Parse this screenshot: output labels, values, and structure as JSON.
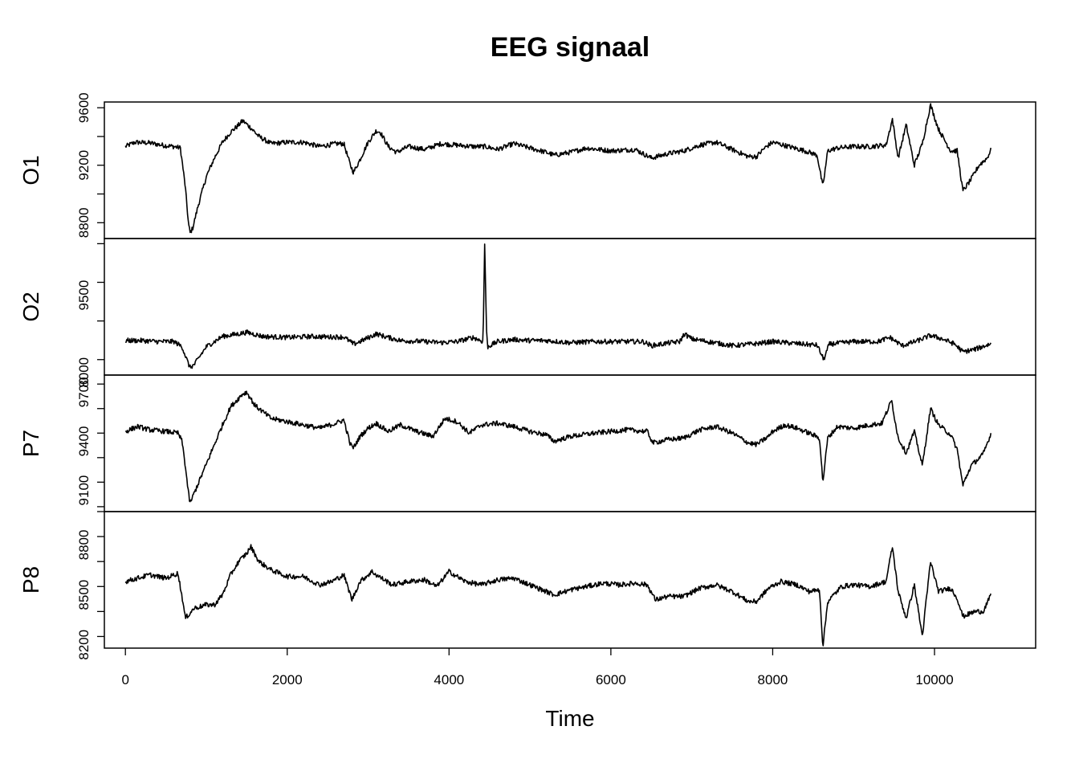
{
  "chart_data": {
    "type": "line",
    "title": "EEG signaal",
    "xlabel": "Time",
    "xlim": [
      -260,
      11250
    ],
    "x_ticks": [
      0,
      2000,
      4000,
      6000,
      8000,
      10000
    ],
    "grid": false,
    "series": [
      {
        "name": "O1",
        "ylim": [
          8690,
          9640
        ],
        "y_ticks": [
          8800,
          9200,
          9600
        ],
        "anchors": [
          [
            0,
            9330
          ],
          [
            120,
            9360
          ],
          [
            300,
            9355
          ],
          [
            450,
            9340
          ],
          [
            600,
            9330
          ],
          [
            680,
            9320
          ],
          [
            740,
            9050
          ],
          [
            780,
            8790
          ],
          [
            800,
            8730
          ],
          [
            830,
            8760
          ],
          [
            900,
            8920
          ],
          [
            1000,
            9120
          ],
          [
            1100,
            9250
          ],
          [
            1200,
            9360
          ],
          [
            1300,
            9430
          ],
          [
            1400,
            9480
          ],
          [
            1450,
            9510
          ],
          [
            1550,
            9460
          ],
          [
            1650,
            9400
          ],
          [
            1800,
            9350
          ],
          [
            2000,
            9360
          ],
          [
            2200,
            9360
          ],
          [
            2400,
            9330
          ],
          [
            2600,
            9350
          ],
          [
            2700,
            9350
          ],
          [
            2780,
            9200
          ],
          [
            2820,
            9150
          ],
          [
            2900,
            9240
          ],
          [
            3000,
            9360
          ],
          [
            3100,
            9440
          ],
          [
            3150,
            9430
          ],
          [
            3250,
            9330
          ],
          [
            3350,
            9290
          ],
          [
            3500,
            9330
          ],
          [
            3700,
            9310
          ],
          [
            3900,
            9350
          ],
          [
            4100,
            9340
          ],
          [
            4300,
            9330
          ],
          [
            4450,
            9330
          ],
          [
            4600,
            9310
          ],
          [
            4800,
            9350
          ],
          [
            5000,
            9320
          ],
          [
            5200,
            9290
          ],
          [
            5300,
            9270
          ],
          [
            5500,
            9290
          ],
          [
            5700,
            9320
          ],
          [
            6000,
            9300
          ],
          [
            6300,
            9310
          ],
          [
            6500,
            9250
          ],
          [
            6700,
            9280
          ],
          [
            6900,
            9300
          ],
          [
            7100,
            9340
          ],
          [
            7300,
            9360
          ],
          [
            7500,
            9310
          ],
          [
            7700,
            9260
          ],
          [
            7800,
            9260
          ],
          [
            7900,
            9320
          ],
          [
            8000,
            9360
          ],
          [
            8200,
            9330
          ],
          [
            8400,
            9300
          ],
          [
            8550,
            9270
          ],
          [
            8620,
            9050
          ],
          [
            8680,
            9300
          ],
          [
            8800,
            9320
          ],
          [
            9000,
            9330
          ],
          [
            9200,
            9330
          ],
          [
            9400,
            9340
          ],
          [
            9480,
            9520
          ],
          [
            9550,
            9250
          ],
          [
            9650,
            9480
          ],
          [
            9750,
            9200
          ],
          [
            9850,
            9350
          ],
          [
            9950,
            9620
          ],
          [
            10050,
            9450
          ],
          [
            10200,
            9300
          ],
          [
            10280,
            9300
          ],
          [
            10350,
            9020
          ],
          [
            10450,
            9100
          ],
          [
            10550,
            9200
          ],
          [
            10650,
            9250
          ],
          [
            10700,
            9310
          ]
        ]
      },
      {
        "name": "O2",
        "ylim": [
          7950,
          10600
        ],
        "y_ticks": [
          8000,
          9500
        ],
        "anchors": [
          [
            0,
            8620
          ],
          [
            200,
            8620
          ],
          [
            400,
            8600
          ],
          [
            600,
            8600
          ],
          [
            700,
            8500
          ],
          [
            780,
            8160
          ],
          [
            800,
            8100
          ],
          [
            850,
            8150
          ],
          [
            1000,
            8500
          ],
          [
            1200,
            8700
          ],
          [
            1400,
            8750
          ],
          [
            1500,
            8780
          ],
          [
            1700,
            8700
          ],
          [
            2000,
            8680
          ],
          [
            2300,
            8700
          ],
          [
            2500,
            8690
          ],
          [
            2700,
            8690
          ],
          [
            2820,
            8550
          ],
          [
            2900,
            8600
          ],
          [
            3100,
            8750
          ],
          [
            3200,
            8700
          ],
          [
            3400,
            8620
          ],
          [
            3700,
            8600
          ],
          [
            3900,
            8580
          ],
          [
            4100,
            8600
          ],
          [
            4300,
            8680
          ],
          [
            4420,
            8600
          ],
          [
            4440,
            10500
          ],
          [
            4465,
            8700
          ],
          [
            4480,
            8500
          ],
          [
            4600,
            8600
          ],
          [
            4800,
            8640
          ],
          [
            5000,
            8620
          ],
          [
            5200,
            8620
          ],
          [
            5500,
            8580
          ],
          [
            5800,
            8600
          ],
          [
            6100,
            8600
          ],
          [
            6400,
            8600
          ],
          [
            6500,
            8520
          ],
          [
            6700,
            8570
          ],
          [
            6850,
            8600
          ],
          [
            6910,
            8750
          ],
          [
            7000,
            8650
          ],
          [
            7200,
            8600
          ],
          [
            7500,
            8520
          ],
          [
            7800,
            8560
          ],
          [
            8000,
            8600
          ],
          [
            8300,
            8560
          ],
          [
            8550,
            8530
          ],
          [
            8630,
            8250
          ],
          [
            8700,
            8550
          ],
          [
            9000,
            8600
          ],
          [
            9300,
            8600
          ],
          [
            9450,
            8680
          ],
          [
            9600,
            8520
          ],
          [
            9800,
            8620
          ],
          [
            9950,
            8720
          ],
          [
            10100,
            8650
          ],
          [
            10250,
            8550
          ],
          [
            10350,
            8400
          ],
          [
            10500,
            8450
          ],
          [
            10700,
            8560
          ]
        ]
      },
      {
        "name": "P7",
        "ylim": [
          8970,
          9805
        ],
        "y_ticks": [
          9100,
          9400,
          9700
        ],
        "anchors": [
          [
            0,
            9460
          ],
          [
            150,
            9490
          ],
          [
            300,
            9470
          ],
          [
            500,
            9460
          ],
          [
            650,
            9450
          ],
          [
            700,
            9400
          ],
          [
            740,
            9250
          ],
          [
            780,
            9080
          ],
          [
            800,
            9020
          ],
          [
            830,
            9060
          ],
          [
            950,
            9200
          ],
          [
            1100,
            9380
          ],
          [
            1200,
            9500
          ],
          [
            1300,
            9610
          ],
          [
            1450,
            9690
          ],
          [
            1500,
            9700
          ],
          [
            1600,
            9620
          ],
          [
            1800,
            9540
          ],
          [
            2000,
            9520
          ],
          [
            2200,
            9500
          ],
          [
            2400,
            9480
          ],
          [
            2600,
            9510
          ],
          [
            2700,
            9530
          ],
          [
            2780,
            9380
          ],
          [
            2820,
            9360
          ],
          [
            2900,
            9430
          ],
          [
            3000,
            9480
          ],
          [
            3100,
            9510
          ],
          [
            3250,
            9460
          ],
          [
            3400,
            9500
          ],
          [
            3600,
            9460
          ],
          [
            3800,
            9430
          ],
          [
            3950,
            9540
          ],
          [
            4100,
            9520
          ],
          [
            4250,
            9450
          ],
          [
            4400,
            9500
          ],
          [
            4600,
            9510
          ],
          [
            4800,
            9490
          ],
          [
            5000,
            9460
          ],
          [
            5200,
            9440
          ],
          [
            5300,
            9400
          ],
          [
            5500,
            9430
          ],
          [
            5800,
            9450
          ],
          [
            6000,
            9460
          ],
          [
            6200,
            9470
          ],
          [
            6450,
            9460
          ],
          [
            6520,
            9390
          ],
          [
            6700,
            9410
          ],
          [
            6900,
            9420
          ],
          [
            7100,
            9470
          ],
          [
            7300,
            9490
          ],
          [
            7500,
            9450
          ],
          [
            7700,
            9390
          ],
          [
            7800,
            9380
          ],
          [
            7950,
            9430
          ],
          [
            8000,
            9460
          ],
          [
            8150,
            9500
          ],
          [
            8300,
            9480
          ],
          [
            8450,
            9450
          ],
          [
            8580,
            9420
          ],
          [
            8620,
            9150
          ],
          [
            8680,
            9420
          ],
          [
            8800,
            9490
          ],
          [
            9000,
            9480
          ],
          [
            9200,
            9500
          ],
          [
            9350,
            9510
          ],
          [
            9470,
            9650
          ],
          [
            9550,
            9420
          ],
          [
            9650,
            9330
          ],
          [
            9750,
            9460
          ],
          [
            9850,
            9250
          ],
          [
            9950,
            9600
          ],
          [
            10050,
            9500
          ],
          [
            10200,
            9440
          ],
          [
            10280,
            9350
          ],
          [
            10350,
            9130
          ],
          [
            10450,
            9250
          ],
          [
            10600,
            9320
          ],
          [
            10700,
            9450
          ]
        ]
      },
      {
        "name": "P8",
        "ylim": [
          8180,
          9000
        ],
        "y_ticks": [
          8200,
          8500,
          8800
        ],
        "anchors": [
          [
            0,
            8580
          ],
          [
            150,
            8600
          ],
          [
            300,
            8620
          ],
          [
            500,
            8600
          ],
          [
            650,
            8630
          ],
          [
            700,
            8490
          ],
          [
            740,
            8360
          ],
          [
            780,
            8380
          ],
          [
            850,
            8420
          ],
          [
            1000,
            8440
          ],
          [
            1100,
            8440
          ],
          [
            1200,
            8500
          ],
          [
            1300,
            8620
          ],
          [
            1400,
            8700
          ],
          [
            1500,
            8750
          ],
          [
            1550,
            8790
          ],
          [
            1650,
            8700
          ],
          [
            1800,
            8650
          ],
          [
            2000,
            8610
          ],
          [
            2200,
            8610
          ],
          [
            2400,
            8560
          ],
          [
            2550,
            8580
          ],
          [
            2700,
            8620
          ],
          [
            2800,
            8470
          ],
          [
            2900,
            8580
          ],
          [
            3050,
            8640
          ],
          [
            3100,
            8620
          ],
          [
            3300,
            8560
          ],
          [
            3500,
            8580
          ],
          [
            3700,
            8590
          ],
          [
            3850,
            8550
          ],
          [
            4000,
            8640
          ],
          [
            4200,
            8580
          ],
          [
            4400,
            8560
          ],
          [
            4600,
            8590
          ],
          [
            4800,
            8600
          ],
          [
            5000,
            8560
          ],
          [
            5200,
            8520
          ],
          [
            5300,
            8500
          ],
          [
            5500,
            8530
          ],
          [
            5700,
            8550
          ],
          [
            5900,
            8570
          ],
          [
            6100,
            8560
          ],
          [
            6300,
            8570
          ],
          [
            6450,
            8560
          ],
          [
            6550,
            8470
          ],
          [
            6700,
            8490
          ],
          [
            6900,
            8490
          ],
          [
            7100,
            8540
          ],
          [
            7300,
            8560
          ],
          [
            7500,
            8520
          ],
          [
            7700,
            8460
          ],
          [
            7800,
            8460
          ],
          [
            7950,
            8540
          ],
          [
            8100,
            8580
          ],
          [
            8300,
            8560
          ],
          [
            8450,
            8520
          ],
          [
            8580,
            8530
          ],
          [
            8620,
            8190
          ],
          [
            8680,
            8460
          ],
          [
            8850,
            8550
          ],
          [
            9000,
            8560
          ],
          [
            9200,
            8550
          ],
          [
            9400,
            8580
          ],
          [
            9480,
            8790
          ],
          [
            9550,
            8520
          ],
          [
            9650,
            8360
          ],
          [
            9750,
            8560
          ],
          [
            9850,
            8250
          ],
          [
            9950,
            8700
          ],
          [
            10050,
            8520
          ],
          [
            10200,
            8540
          ],
          [
            10280,
            8480
          ],
          [
            10350,
            8370
          ],
          [
            10500,
            8400
          ],
          [
            10600,
            8400
          ],
          [
            10700,
            8500
          ]
        ]
      }
    ]
  }
}
